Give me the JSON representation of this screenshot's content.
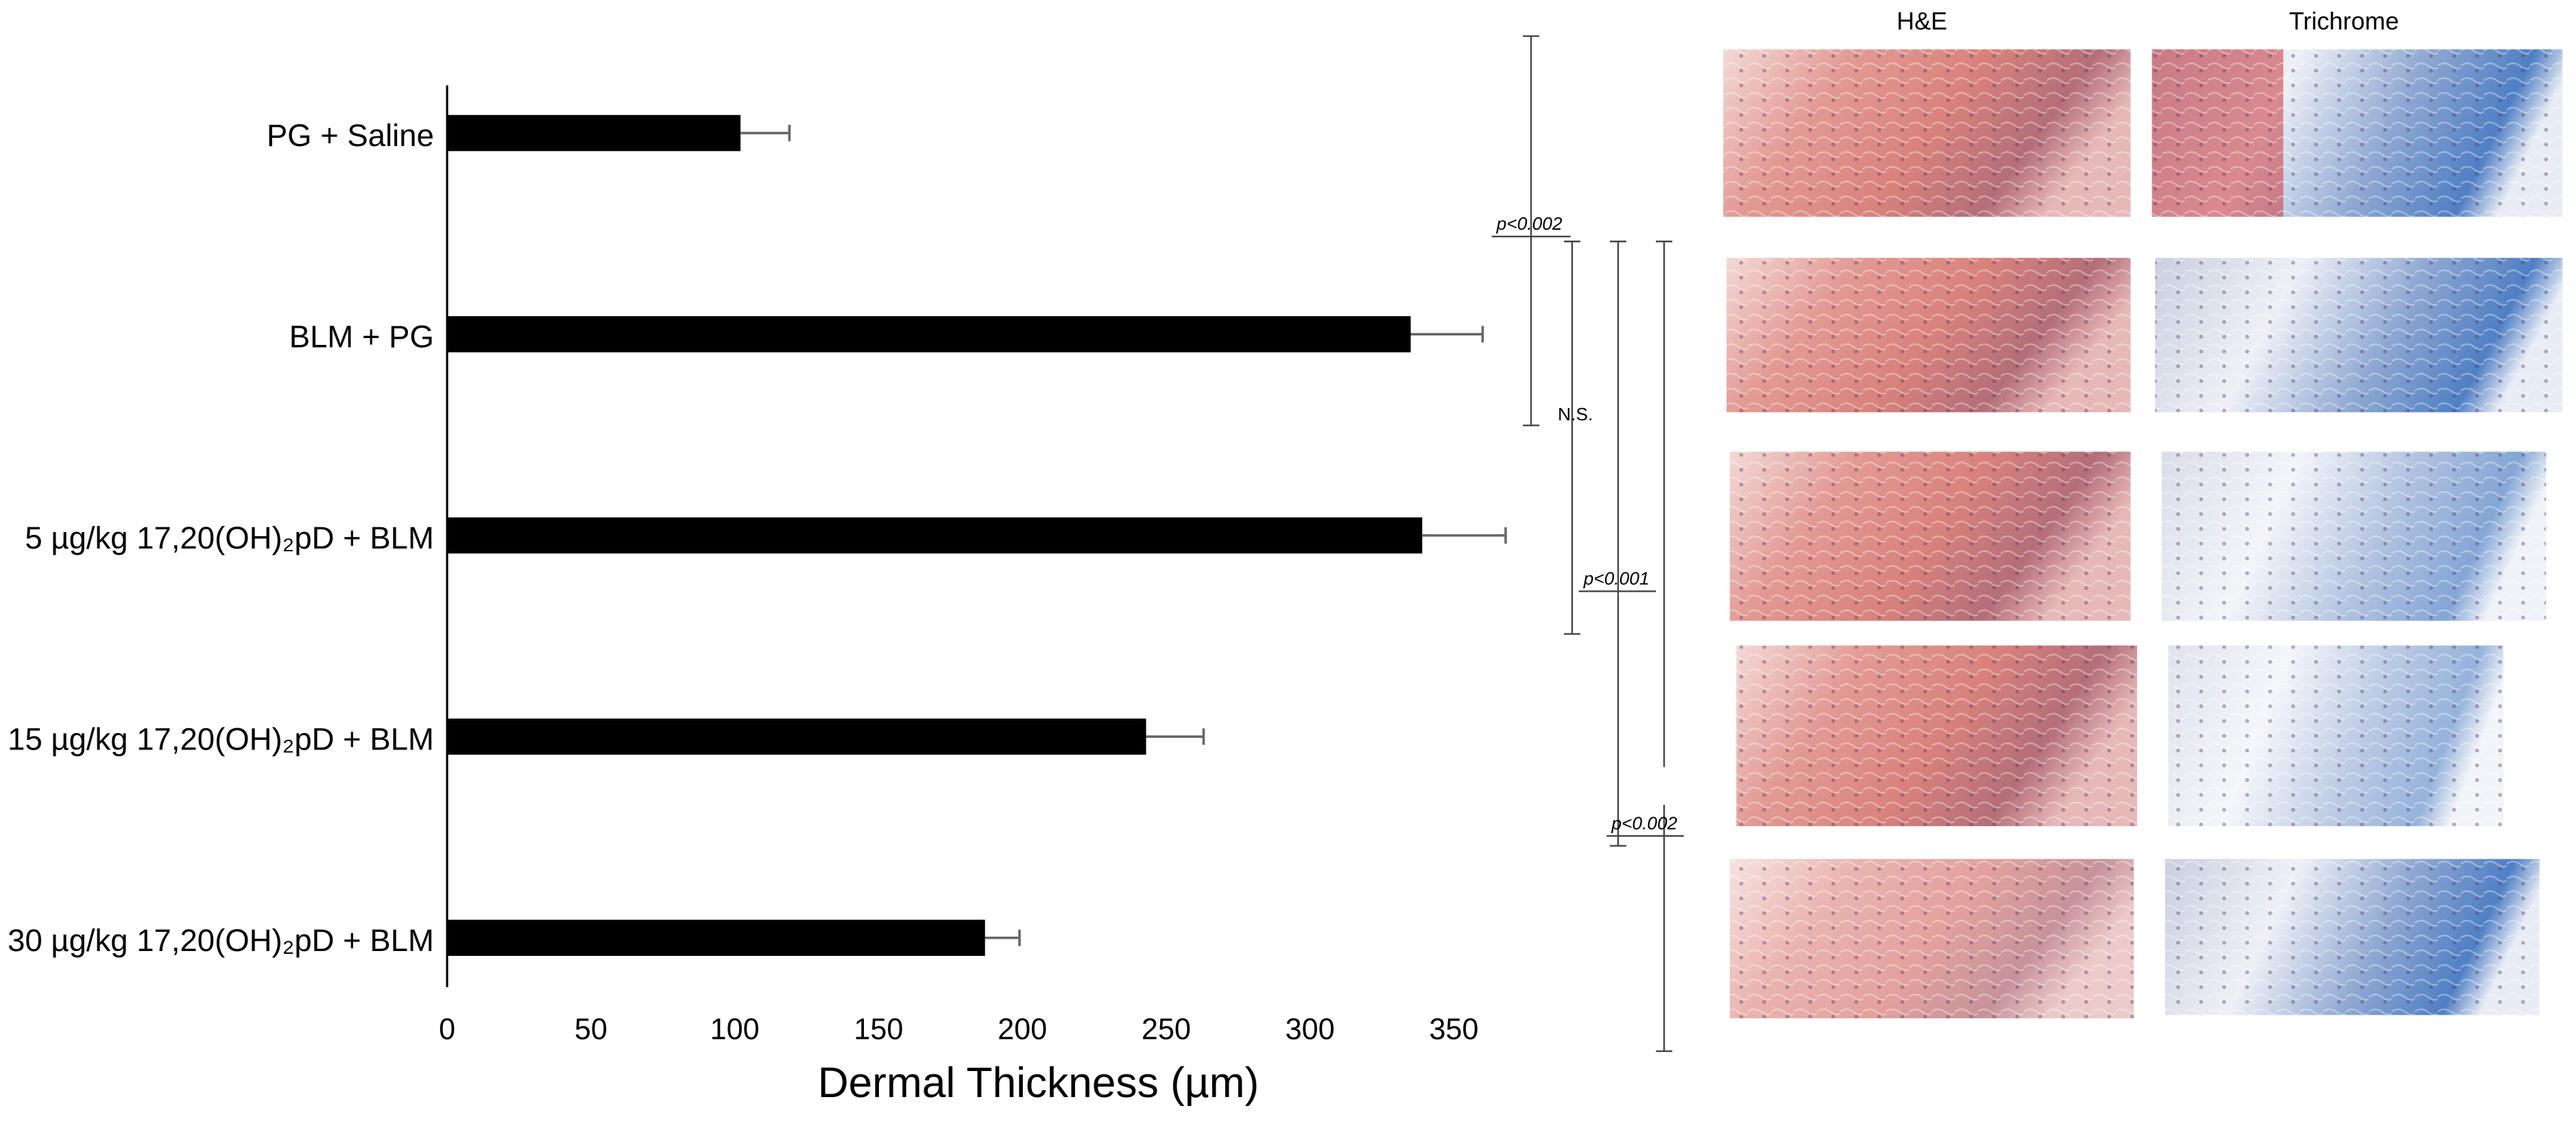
{
  "chart_data": {
    "type": "barh",
    "xlabel": "Dermal Thickness (µm)",
    "categories": [
      "PG + Saline",
      "BLM + PG",
      "5 µg/kg 17,20(OH)₂pD + BLM",
      "15 µg/kg 17,20(OH)₂pD + BLM",
      "30 µg/kg 17,20(OH)₂pD + BLM"
    ],
    "values": [
      102,
      335,
      339,
      243,
      187
    ],
    "errors": [
      17,
      25,
      29,
      20,
      12
    ],
    "color": "#000000",
    "xlim": [
      0,
      350
    ],
    "xticks": [
      0,
      50,
      100,
      150,
      200,
      250,
      300,
      350
    ],
    "annotations": [
      "p<0.002",
      "N.S.",
      "p<0.001",
      "p<0.002"
    ],
    "panel_headers": [
      "H&E",
      "Trichrome"
    ]
  }
}
